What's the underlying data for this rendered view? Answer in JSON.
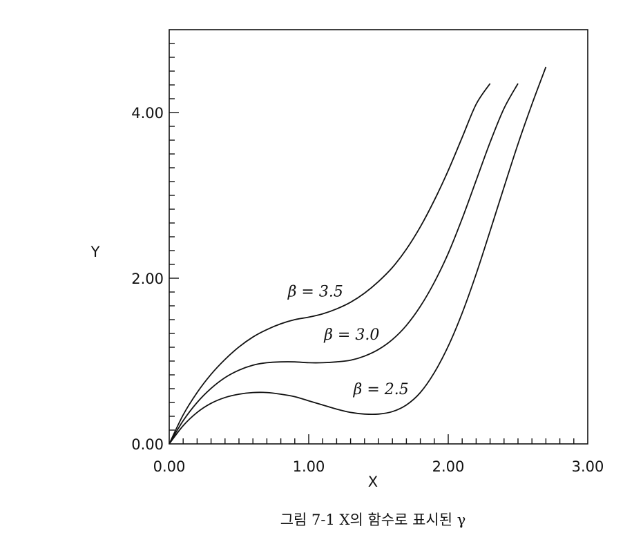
{
  "chart_data": {
    "type": "line",
    "xlabel": "X",
    "ylabel": "Y",
    "xlim": [
      0,
      3
    ],
    "ylim": [
      0,
      5
    ],
    "x_ticks": [
      "0.00",
      "1.00",
      "2.00",
      "3.00"
    ],
    "y_ticks": [
      "0.00",
      "2.00",
      "4.00"
    ],
    "minor_ticks": true,
    "grid": false,
    "caption": "그림 7-1  X의 함수로 표시된 γ",
    "series": [
      {
        "name": "β = 3.5",
        "x": [
          0.0,
          0.1,
          0.2,
          0.3,
          0.4,
          0.5,
          0.6,
          0.7,
          0.8,
          0.9,
          1.0,
          1.1,
          1.2,
          1.3,
          1.4,
          1.5,
          1.6,
          1.7,
          1.8,
          1.9,
          2.0,
          2.1,
          2.2,
          2.3
        ],
        "y": [
          0.0,
          0.35,
          0.62,
          0.84,
          1.02,
          1.17,
          1.29,
          1.38,
          1.45,
          1.5,
          1.53,
          1.57,
          1.63,
          1.71,
          1.82,
          1.96,
          2.13,
          2.35,
          2.62,
          2.94,
          3.3,
          3.7,
          4.1,
          4.35
        ]
      },
      {
        "name": "β = 3.0",
        "x": [
          0.0,
          0.1,
          0.2,
          0.3,
          0.4,
          0.5,
          0.6,
          0.7,
          0.8,
          0.9,
          1.0,
          1.1,
          1.2,
          1.3,
          1.4,
          1.5,
          1.6,
          1.7,
          1.8,
          1.9,
          2.0,
          2.1,
          2.2,
          2.3,
          2.4,
          2.5
        ],
        "y": [
          0.0,
          0.28,
          0.5,
          0.67,
          0.8,
          0.89,
          0.95,
          0.98,
          0.99,
          0.99,
          0.98,
          0.98,
          0.99,
          1.01,
          1.06,
          1.14,
          1.26,
          1.43,
          1.66,
          1.95,
          2.3,
          2.72,
          3.18,
          3.64,
          4.05,
          4.35
        ]
      },
      {
        "name": "β = 2.5",
        "x": [
          0.0,
          0.1,
          0.2,
          0.3,
          0.4,
          0.5,
          0.6,
          0.7,
          0.8,
          0.9,
          1.0,
          1.1,
          1.2,
          1.3,
          1.4,
          1.5,
          1.6,
          1.7,
          1.8,
          1.9,
          2.0,
          2.1,
          2.2,
          2.3,
          2.4,
          2.5,
          2.6,
          2.7
        ],
        "y": [
          0.0,
          0.22,
          0.38,
          0.49,
          0.56,
          0.6,
          0.62,
          0.62,
          0.6,
          0.57,
          0.52,
          0.47,
          0.42,
          0.38,
          0.36,
          0.36,
          0.39,
          0.47,
          0.62,
          0.86,
          1.18,
          1.58,
          2.05,
          2.57,
          3.1,
          3.62,
          4.1,
          4.55
        ]
      }
    ],
    "annotations": [
      {
        "series": 0,
        "text": "β = 3.5",
        "x": 0.85,
        "y": 1.78
      },
      {
        "series": 1,
        "text": "β = 3.0",
        "x": 1.11,
        "y": 1.26
      },
      {
        "series": 2,
        "text": "β = 2.5",
        "x": 1.32,
        "y": 0.6
      }
    ]
  }
}
